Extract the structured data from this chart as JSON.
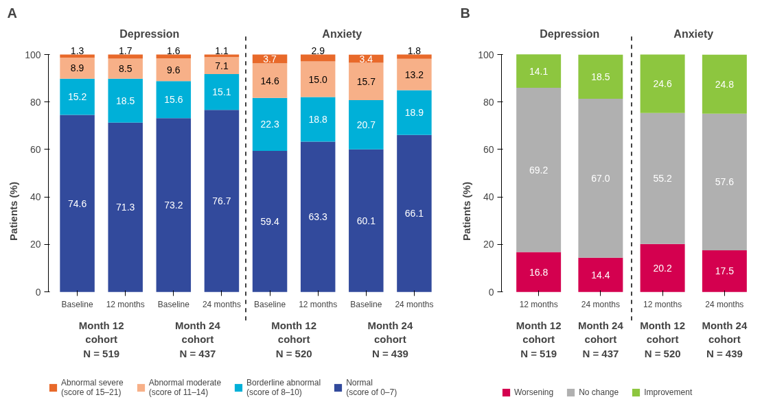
{
  "chart_data": [
    {
      "type": "bar",
      "stacked": true,
      "ylabel": "Patients (%)",
      "ylim": [
        0,
        100
      ],
      "yticks": [
        0,
        20,
        40,
        60,
        80,
        100
      ],
      "grid": false,
      "legend": "bottom",
      "categories": [
        "Baseline",
        "12 months",
        "Baseline",
        "24 months",
        "Baseline",
        "12 months",
        "Baseline",
        "24 months"
      ],
      "annotations": [
        "A",
        "Depression",
        "Anxiety",
        "Month 12\ncohort\nN = 519",
        "Month 24\ncohort\nN = 437",
        "Month 12\ncohort\nN = 520",
        "Month 24\ncohort\nN = 439"
      ],
      "series": [
        {
          "name": "Normal\n(score of 0–7)",
          "color": "#324a9c",
          "values": [
            74.6,
            71.3,
            73.2,
            76.7,
            59.4,
            63.3,
            60.1,
            66.1
          ],
          "value_labels": [
            "74.6",
            "71.3",
            "73.2",
            "76.7",
            "59.4",
            "63.3",
            "60.1",
            "66.1"
          ]
        },
        {
          "name": "Borderline abnormal\n(score of 8–10)",
          "color": "#00b0d8",
          "values": [
            15.2,
            18.5,
            15.6,
            15.1,
            22.3,
            18.8,
            20.7,
            18.9
          ],
          "value_labels": [
            "15.2",
            "18.5",
            "15.6",
            "15.1",
            "22.3",
            "18.8",
            "20.7",
            "18.9"
          ]
        },
        {
          "name": "Abnormal moderate\n(score of 11–14)",
          "color": "#f7b088",
          "values": [
            8.9,
            8.5,
            9.6,
            7.1,
            14.6,
            15.0,
            15.7,
            13.2
          ],
          "value_labels": [
            "8.9",
            "8.5",
            "9.6",
            "7.1",
            "14.6",
            "15.0",
            "15.7",
            "13.2"
          ]
        },
        {
          "name": "Abnormal severe\n(score of 15–21)",
          "color": "#e8692a",
          "values": [
            1.3,
            1.7,
            1.6,
            1.1,
            3.7,
            2.9,
            3.4,
            1.8
          ],
          "value_labels": [
            "1.3",
            "1.7",
            "1.6",
            "1.1",
            "3.7",
            "2.9",
            "3.4",
            "1.8"
          ]
        }
      ]
    },
    {
      "type": "bar",
      "stacked": true,
      "ylabel": "Patients (%)",
      "ylim": [
        0,
        100
      ],
      "yticks": [
        0,
        20,
        40,
        60,
        80,
        100
      ],
      "grid": false,
      "legend": "bottom",
      "categories": [
        "12 months",
        "24 months",
        "12 months",
        "24 months"
      ],
      "annotations": [
        "B",
        "Depression",
        "Anxiety",
        "Month 12\ncohort\nN = 519",
        "Month 24\ncohort\nN = 437",
        "Month 12\ncohort\nN = 520",
        "Month 24\ncohort\nN = 439"
      ],
      "series": [
        {
          "name": "Worsening",
          "color": "#d4004f",
          "values": [
            16.8,
            14.4,
            20.2,
            17.5
          ],
          "value_labels": [
            "16.8",
            "14.4",
            "20.2",
            "17.5"
          ]
        },
        {
          "name": "No change",
          "color": "#b0b0b0",
          "values": [
            69.2,
            67.0,
            55.2,
            57.6
          ],
          "value_labels": [
            "69.2",
            "67.0",
            "55.2",
            "57.6"
          ]
        },
        {
          "name": "Improvement",
          "color": "#8dc63f",
          "values": [
            14.1,
            18.5,
            24.6,
            24.8
          ],
          "value_labels": [
            "14.1",
            "18.5",
            "24.6",
            "24.8"
          ]
        }
      ]
    }
  ]
}
